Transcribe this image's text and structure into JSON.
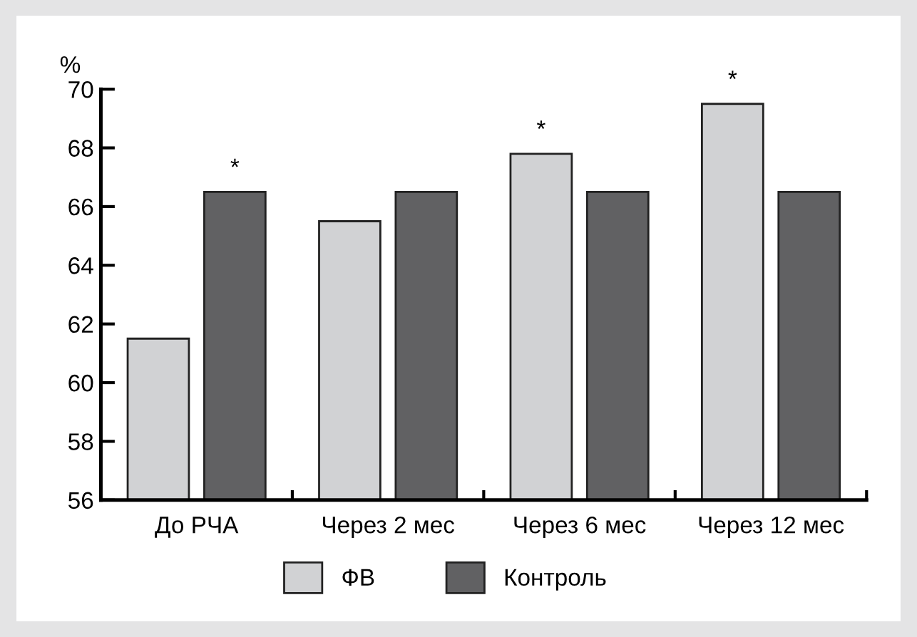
{
  "chart_data": {
    "type": "bar",
    "ylabel": "%",
    "categories": [
      "До РЧА",
      "Через 2 мес",
      "Через 6 мес",
      "Через 12 мес"
    ],
    "series": [
      {
        "name": "ФВ",
        "color": "#d1d2d4",
        "values": [
          61.5,
          65.5,
          67.8,
          69.5
        ]
      },
      {
        "name": "Контроль",
        "color": "#616163",
        "values": [
          66.5,
          66.5,
          66.5,
          66.5
        ]
      }
    ],
    "ylim": [
      56,
      70
    ],
    "yticks": [
      56,
      58,
      60,
      62,
      64,
      66,
      68,
      70
    ],
    "grid": false,
    "legend": "bottom",
    "annotations": [
      "*",
      "*",
      "*"
    ]
  }
}
